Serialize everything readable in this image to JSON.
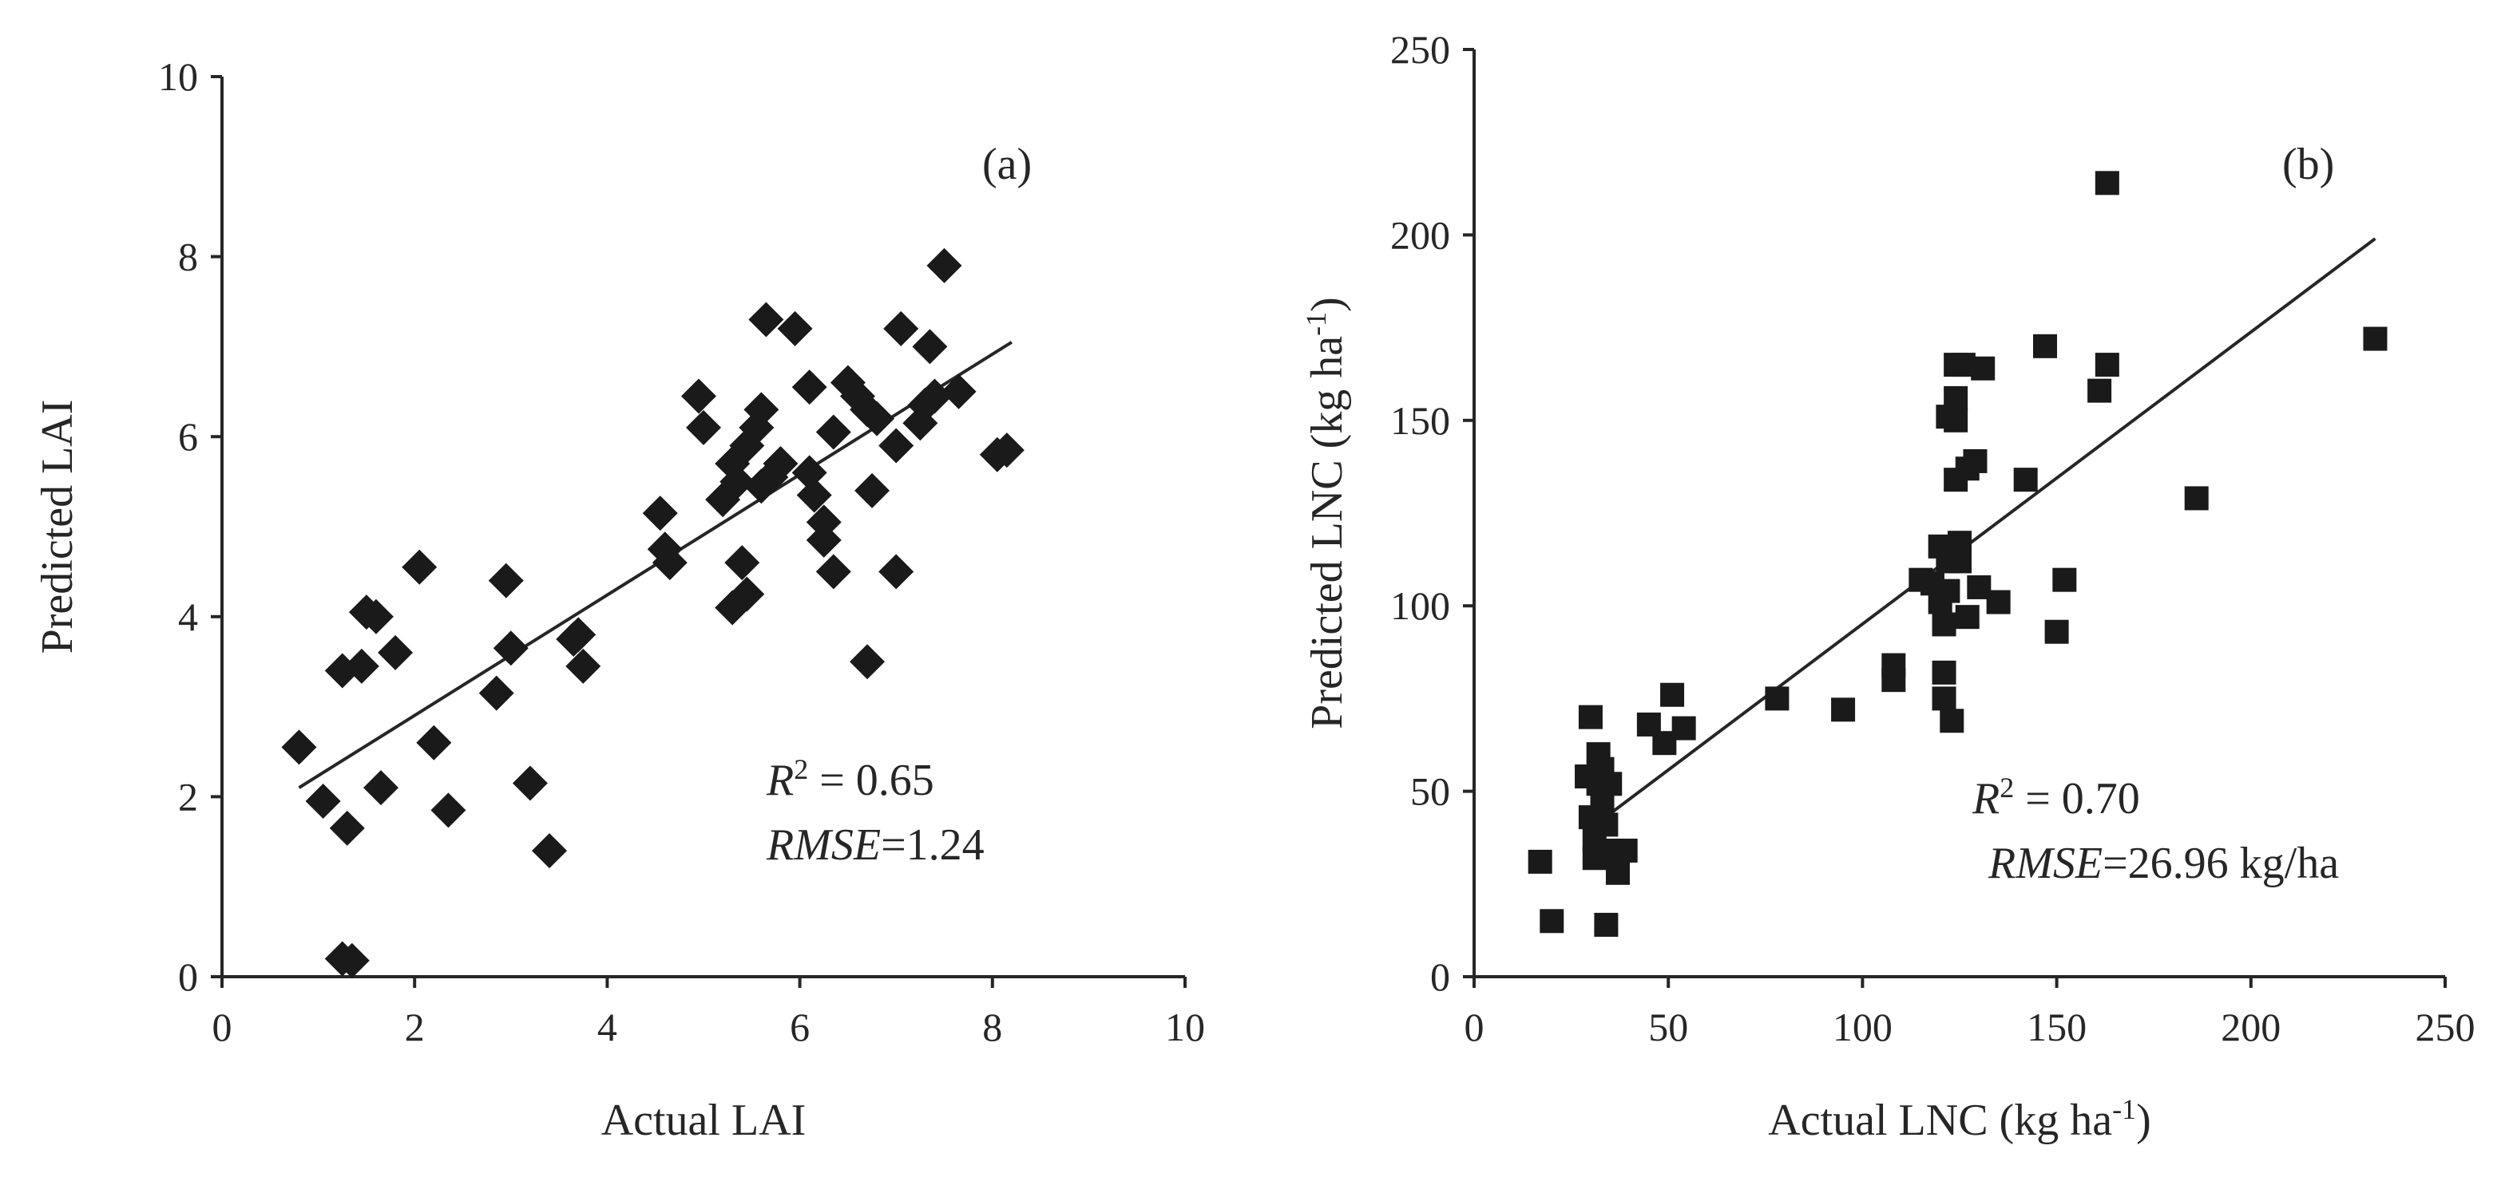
{
  "chart_data": [
    {
      "type": "scatter",
      "panel_label": "(a)",
      "xlabel": "Actual LAI",
      "ylabel": "Predicted LAI",
      "xlim": [
        0,
        10
      ],
      "ylim": [
        0,
        10
      ],
      "xticks": [
        "0",
        "2",
        "4",
        "6",
        "8",
        "10"
      ],
      "yticks": [
        "0",
        "2",
        "4",
        "6",
        "8",
        "10"
      ],
      "marker": "diamond",
      "marker_color": "#1a1a1a",
      "r2_label": "R",
      "r2_sup": "2",
      "r2_rest": " = 0.65",
      "rmse_label": "RMSE",
      "rmse_rest": "=1.24",
      "trendline": {
        "x": [
          0.8,
          8.2
        ],
        "y": [
          2.1,
          7.05
        ]
      },
      "points": [
        {
          "x": 0.8,
          "y": 2.55
        },
        {
          "x": 1.05,
          "y": 1.95
        },
        {
          "x": 1.3,
          "y": 1.65
        },
        {
          "x": 1.25,
          "y": 0.2
        },
        {
          "x": 1.35,
          "y": 0.18
        },
        {
          "x": 1.25,
          "y": 3.4
        },
        {
          "x": 1.45,
          "y": 3.45
        },
        {
          "x": 1.5,
          "y": 4.05
        },
        {
          "x": 1.6,
          "y": 4.0
        },
        {
          "x": 1.65,
          "y": 2.1
        },
        {
          "x": 1.8,
          "y": 3.6
        },
        {
          "x": 2.05,
          "y": 4.55
        },
        {
          "x": 2.2,
          "y": 2.6
        },
        {
          "x": 2.35,
          "y": 1.85
        },
        {
          "x": 2.85,
          "y": 3.15
        },
        {
          "x": 2.95,
          "y": 4.4
        },
        {
          "x": 3.0,
          "y": 3.65
        },
        {
          "x": 3.2,
          "y": 2.15
        },
        {
          "x": 3.4,
          "y": 1.4
        },
        {
          "x": 3.65,
          "y": 3.75
        },
        {
          "x": 3.75,
          "y": 3.45
        },
        {
          "x": 3.7,
          "y": 3.8
        },
        {
          "x": 4.55,
          "y": 5.15
        },
        {
          "x": 4.6,
          "y": 4.75
        },
        {
          "x": 4.65,
          "y": 4.6
        },
        {
          "x": 4.95,
          "y": 6.45
        },
        {
          "x": 5.0,
          "y": 6.1
        },
        {
          "x": 5.2,
          "y": 5.3
        },
        {
          "x": 5.3,
          "y": 5.7
        },
        {
          "x": 5.35,
          "y": 5.5
        },
        {
          "x": 5.4,
          "y": 4.6
        },
        {
          "x": 5.3,
          "y": 4.1
        },
        {
          "x": 5.45,
          "y": 4.25
        },
        {
          "x": 5.45,
          "y": 5.9
        },
        {
          "x": 5.55,
          "y": 6.1
        },
        {
          "x": 5.6,
          "y": 5.45
        },
        {
          "x": 5.6,
          "y": 6.3
        },
        {
          "x": 5.65,
          "y": 7.3
        },
        {
          "x": 5.7,
          "y": 5.55
        },
        {
          "x": 5.8,
          "y": 5.7
        },
        {
          "x": 5.95,
          "y": 7.2
        },
        {
          "x": 6.1,
          "y": 6.55
        },
        {
          "x": 6.1,
          "y": 5.6
        },
        {
          "x": 6.15,
          "y": 5.35
        },
        {
          "x": 6.25,
          "y": 5.05
        },
        {
          "x": 6.25,
          "y": 4.85
        },
        {
          "x": 6.35,
          "y": 6.05
        },
        {
          "x": 6.35,
          "y": 4.5
        },
        {
          "x": 6.5,
          "y": 6.6
        },
        {
          "x": 6.6,
          "y": 6.45
        },
        {
          "x": 6.7,
          "y": 6.3
        },
        {
          "x": 6.7,
          "y": 3.5
        },
        {
          "x": 6.75,
          "y": 5.4
        },
        {
          "x": 6.8,
          "y": 6.2
        },
        {
          "x": 7.0,
          "y": 5.9
        },
        {
          "x": 7.0,
          "y": 4.5
        },
        {
          "x": 7.05,
          "y": 7.2
        },
        {
          "x": 7.25,
          "y": 6.15
        },
        {
          "x": 7.3,
          "y": 6.35
        },
        {
          "x": 7.35,
          "y": 7.0
        },
        {
          "x": 7.4,
          "y": 6.45
        },
        {
          "x": 7.5,
          "y": 7.9
        },
        {
          "x": 7.65,
          "y": 6.5
        },
        {
          "x": 8.05,
          "y": 5.8
        },
        {
          "x": 8.15,
          "y": 5.85
        }
      ]
    },
    {
      "type": "scatter",
      "panel_label": "(b)",
      "xlabel_main": "Actual LNC (kg ha",
      "xlabel_sup": "-1",
      "xlabel_end": ")",
      "ylabel_main": "Predicted LNC (kg ha",
      "ylabel_sup": "-1",
      "ylabel_end": ")",
      "xlim": [
        0,
        250
      ],
      "ylim": [
        0,
        250
      ],
      "xticks": [
        "0",
        "50",
        "100",
        "150",
        "200",
        "250"
      ],
      "yticks": [
        "0",
        "50",
        "100",
        "150",
        "200",
        "250"
      ],
      "marker": "square",
      "marker_color": "#1a1a1a",
      "r2_label": "R",
      "r2_sup": "2",
      "r2_rest": " = 0.70",
      "rmse_label": "RMSE",
      "rmse_rest": "=26.96 kg/ha",
      "trendline": {
        "x": [
          30,
          232
        ],
        "y": [
          40,
          199
        ]
      },
      "points": [
        {
          "x": 17,
          "y": 31
        },
        {
          "x": 20,
          "y": 15
        },
        {
          "x": 29,
          "y": 54
        },
        {
          "x": 30,
          "y": 70
        },
        {
          "x": 30,
          "y": 43
        },
        {
          "x": 31,
          "y": 37
        },
        {
          "x": 31,
          "y": 32
        },
        {
          "x": 32,
          "y": 60
        },
        {
          "x": 32,
          "y": 52
        },
        {
          "x": 33,
          "y": 56
        },
        {
          "x": 33,
          "y": 47
        },
        {
          "x": 34,
          "y": 41
        },
        {
          "x": 34,
          "y": 14
        },
        {
          "x": 35,
          "y": 52
        },
        {
          "x": 36,
          "y": 34
        },
        {
          "x": 37,
          "y": 28
        },
        {
          "x": 39,
          "y": 34
        },
        {
          "x": 45,
          "y": 68
        },
        {
          "x": 49,
          "y": 63
        },
        {
          "x": 51,
          "y": 76
        },
        {
          "x": 54,
          "y": 67
        },
        {
          "x": 78,
          "y": 75
        },
        {
          "x": 95,
          "y": 72
        },
        {
          "x": 108,
          "y": 84
        },
        {
          "x": 108,
          "y": 80
        },
        {
          "x": 115,
          "y": 107
        },
        {
          "x": 118,
          "y": 106
        },
        {
          "x": 120,
          "y": 116
        },
        {
          "x": 120,
          "y": 101
        },
        {
          "x": 121,
          "y": 95
        },
        {
          "x": 121,
          "y": 82
        },
        {
          "x": 121,
          "y": 75
        },
        {
          "x": 122,
          "y": 151
        },
        {
          "x": 122,
          "y": 112
        },
        {
          "x": 122,
          "y": 104
        },
        {
          "x": 123,
          "y": 69
        },
        {
          "x": 124,
          "y": 165
        },
        {
          "x": 124,
          "y": 156
        },
        {
          "x": 124,
          "y": 150
        },
        {
          "x": 124,
          "y": 134
        },
        {
          "x": 125,
          "y": 117
        },
        {
          "x": 125,
          "y": 112
        },
        {
          "x": 126,
          "y": 165
        },
        {
          "x": 127,
          "y": 137
        },
        {
          "x": 127,
          "y": 97
        },
        {
          "x": 129,
          "y": 139
        },
        {
          "x": 130,
          "y": 105
        },
        {
          "x": 131,
          "y": 164
        },
        {
          "x": 135,
          "y": 101
        },
        {
          "x": 142,
          "y": 134
        },
        {
          "x": 147,
          "y": 170
        },
        {
          "x": 150,
          "y": 93
        },
        {
          "x": 152,
          "y": 107
        },
        {
          "x": 161,
          "y": 158
        },
        {
          "x": 163,
          "y": 214
        },
        {
          "x": 163,
          "y": 165
        },
        {
          "x": 186,
          "y": 129
        },
        {
          "x": 232,
          "y": 172
        }
      ]
    }
  ]
}
